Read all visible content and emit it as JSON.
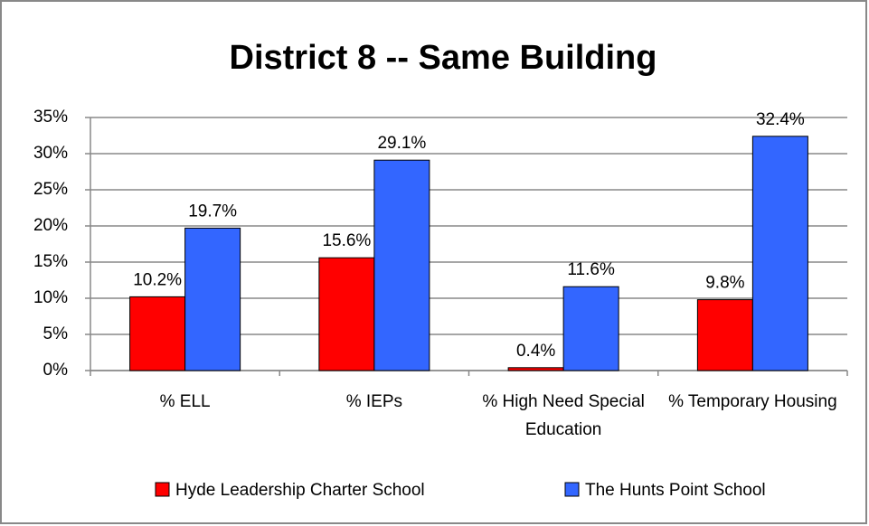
{
  "chart_data": {
    "type": "bar",
    "title": "District 8 -- Same Building",
    "categories": [
      "% ELL",
      "% IEPs",
      "% High Need Special Education",
      "% Temporary Housing"
    ],
    "series": [
      {
        "name": "Hyde Leadership Charter School",
        "color": "#ff0000",
        "values": [
          10.2,
          15.6,
          0.4,
          9.8
        ],
        "value_labels": [
          "10.2%",
          "15.6%",
          "0.4%",
          "9.8%"
        ]
      },
      {
        "name": "The Hunts Point School",
        "color": "#3366ff",
        "values": [
          19.7,
          29.1,
          11.6,
          32.4
        ],
        "value_labels": [
          "19.7%",
          "29.1%",
          "11.6%",
          "32.4%"
        ]
      }
    ],
    "ylim": [
      0,
      35
    ],
    "yticks": [
      {
        "value": 0,
        "label": "0%"
      },
      {
        "value": 5,
        "label": "5%"
      },
      {
        "value": 10,
        "label": "10%"
      },
      {
        "value": 15,
        "label": "15%"
      },
      {
        "value": 20,
        "label": "20%"
      },
      {
        "value": 25,
        "label": "25%"
      },
      {
        "value": 30,
        "label": "30%"
      },
      {
        "value": 35,
        "label": "35%"
      }
    ],
    "grid": true,
    "legend": "bottom"
  }
}
